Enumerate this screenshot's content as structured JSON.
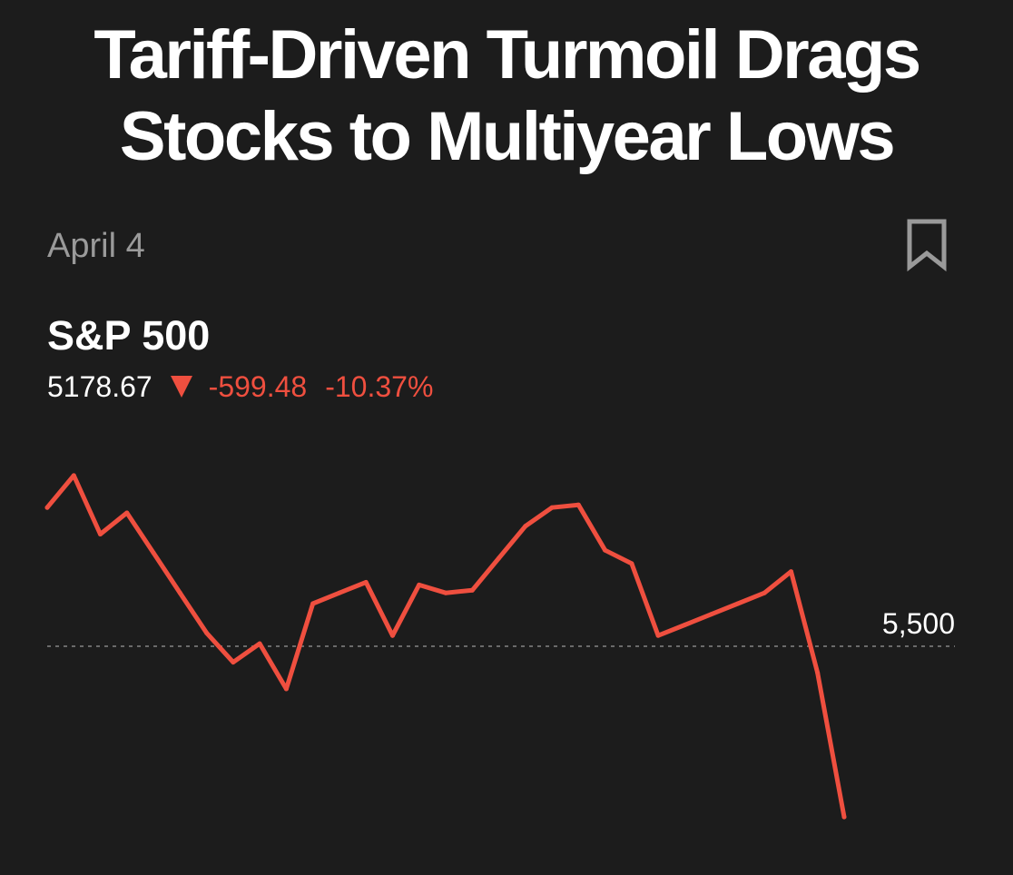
{
  "headline": {
    "line1": "Tariff-Driven Turmoil Drags",
    "line2": "Stocks to Multiyear Lows"
  },
  "date": "April 4",
  "bookmark_icon": "bookmark-icon",
  "quote": {
    "name": "S&P 500",
    "price": "5178.67",
    "change": "-599.48",
    "change_pct": "-10.37%",
    "direction_icon": "down-triangle-icon",
    "down_color": "#ef4f3f"
  },
  "chart_data": {
    "type": "line",
    "series": [
      {
        "values": [
          5760,
          5820,
          5710,
          5750,
          5675,
          5600,
          5525,
          5470,
          5505,
          5420,
          5580,
          5600,
          5620,
          5520,
          5615,
          5600,
          5605,
          5665,
          5725,
          5760,
          5765,
          5680,
          5655,
          5520,
          5540,
          5560,
          5580,
          5600,
          5640,
          5450,
          5180
        ]
      }
    ],
    "reference_lines": [
      {
        "value": 5500,
        "label": "5,500"
      }
    ],
    "ylim": [
      5150,
      5900
    ],
    "grid": false,
    "line_color": "#ef4f3f"
  }
}
